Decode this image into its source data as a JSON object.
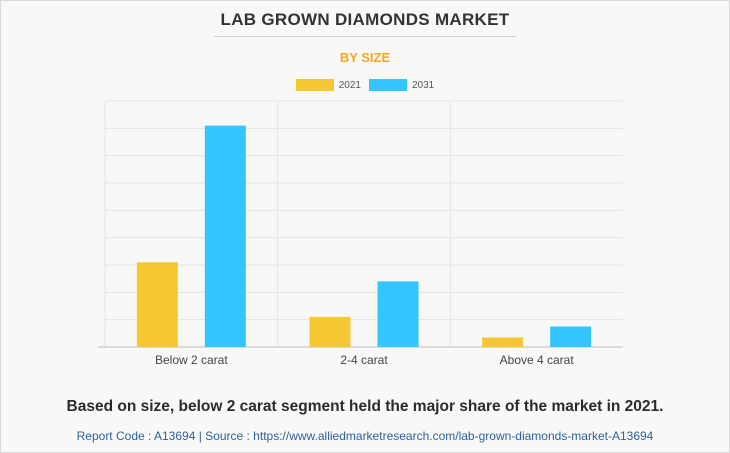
{
  "chart_data": {
    "type": "bar",
    "title": "LAB GROWN DIAMONDS MARKET",
    "subtitle": "BY SIZE",
    "categories": [
      "Below 2 carat",
      "2-4 carat",
      "Above 4 carat"
    ],
    "series": [
      {
        "name": "2021",
        "color": "#f5c833",
        "values": [
          3.1,
          1.1,
          0.35
        ]
      },
      {
        "name": "2031",
        "color": "#33c5ff",
        "values": [
          8.1,
          2.4,
          0.75
        ]
      }
    ],
    "ylim": [
      0,
      9
    ],
    "y_tick_count": 9,
    "y_tick_labels_shown": false,
    "grid": true,
    "legend_position": "top-center"
  },
  "colors": {
    "subtitle": "#f5a623",
    "grid": "#e3e3e3",
    "axis": "#bdbdbd"
  },
  "caption": "Based on size, below 2 carat segment held the major share of the market in 2021.",
  "source": "Report Code : A13694  |  Source : https://www.alliedmarketresearch.com/lab-grown-diamonds-market-A13694"
}
